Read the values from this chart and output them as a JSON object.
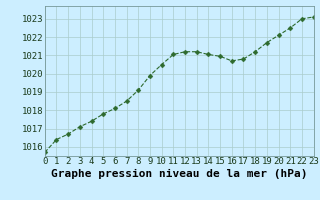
{
  "x": [
    0,
    1,
    2,
    3,
    4,
    5,
    6,
    7,
    8,
    9,
    10,
    11,
    12,
    13,
    14,
    15,
    16,
    17,
    18,
    19,
    20,
    21,
    22,
    23
  ],
  "y": [
    1015.7,
    1016.4,
    1016.7,
    1017.1,
    1017.4,
    1017.8,
    1018.1,
    1018.5,
    1019.1,
    1019.9,
    1020.5,
    1021.05,
    1021.2,
    1021.2,
    1021.05,
    1020.95,
    1020.7,
    1020.8,
    1021.2,
    1021.7,
    1022.1,
    1022.5,
    1023.0,
    1023.1
  ],
  "line_color": "#2d6a2d",
  "markersize": 2.5,
  "bg_color": "#cceeff",
  "grid_major_color": "#aacccc",
  "grid_minor_color": "#bbdddd",
  "ylabel_ticks": [
    1016,
    1017,
    1018,
    1019,
    1020,
    1021,
    1022,
    1023
  ],
  "xlabel": "Graphe pression niveau de la mer (hPa)",
  "xlim": [
    0,
    23
  ],
  "ylim": [
    1015.5,
    1023.7
  ],
  "tick_fontsize": 6.5,
  "label_fontsize": 8,
  "spine_color": "#779999"
}
